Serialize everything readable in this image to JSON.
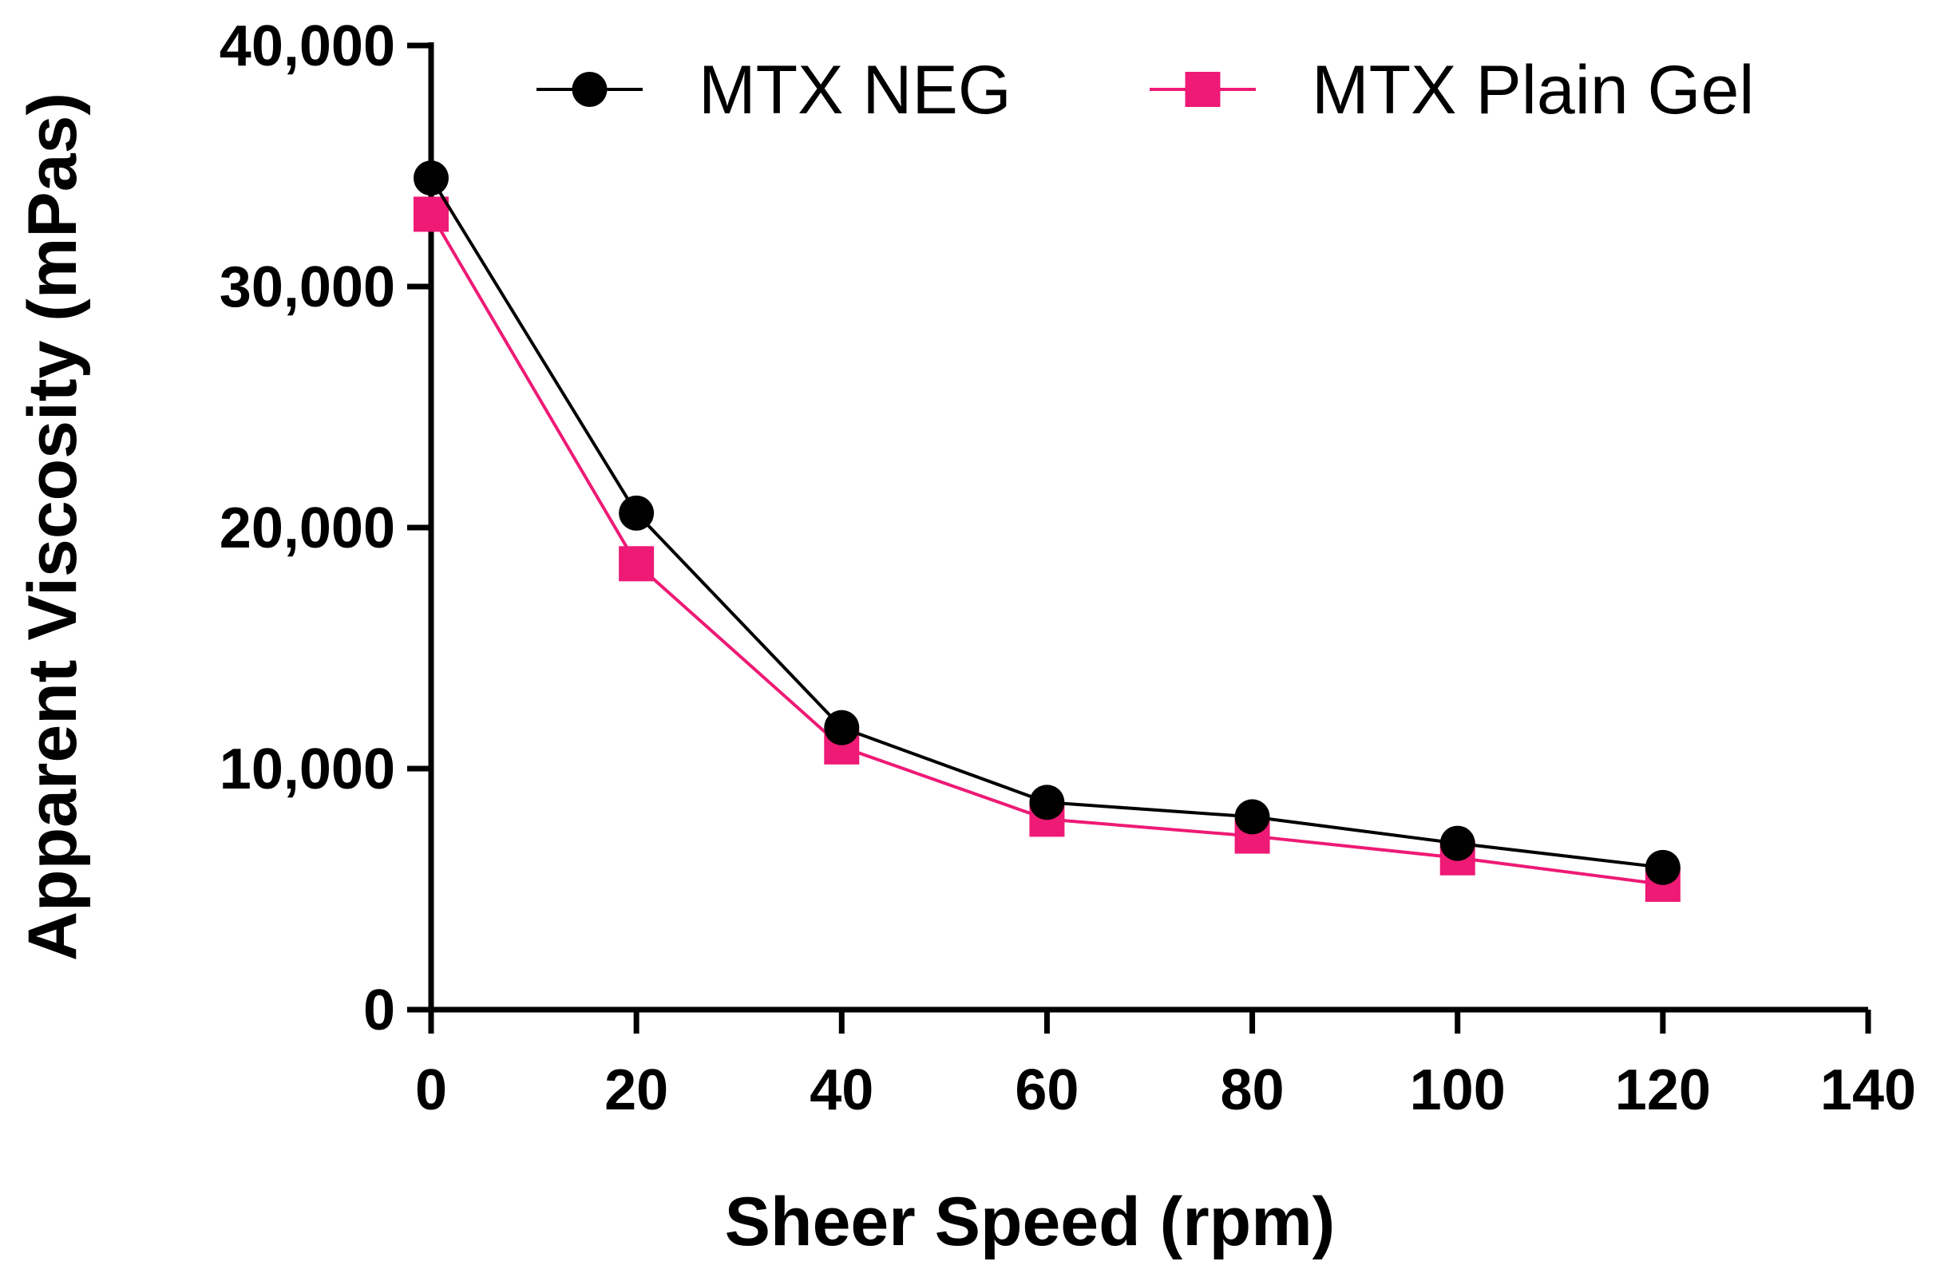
{
  "chart_data": {
    "type": "line",
    "title": "",
    "xlabel": "Sheer Speed (rpm)",
    "ylabel": "Apparent Viscosity (mPas)",
    "xlim": [
      0,
      140
    ],
    "ylim": [
      0,
      40000
    ],
    "x_ticks": [
      0,
      20,
      40,
      60,
      80,
      100,
      120,
      140
    ],
    "x_tick_labels": [
      "0",
      "20",
      "40",
      "60",
      "80",
      "100",
      "120",
      "140"
    ],
    "y_ticks": [
      0,
      10000,
      20000,
      30000,
      40000
    ],
    "y_tick_labels": [
      "0",
      "10,000",
      "20,000",
      "30,000",
      "40,000"
    ],
    "grid": false,
    "legend_position": "top",
    "x": [
      0,
      20,
      40,
      60,
      80,
      100,
      120
    ],
    "series": [
      {
        "name": "MTX NEG",
        "color": "#000000",
        "marker": "circle",
        "values": [
          34500,
          20600,
          11700,
          8600,
          8000,
          6900,
          5900
        ]
      },
      {
        "name": "MTX Plain Gel",
        "color": "#ee1a75",
        "marker": "square",
        "values": [
          33000,
          18500,
          10900,
          7900,
          7200,
          6300,
          5200
        ]
      }
    ]
  }
}
